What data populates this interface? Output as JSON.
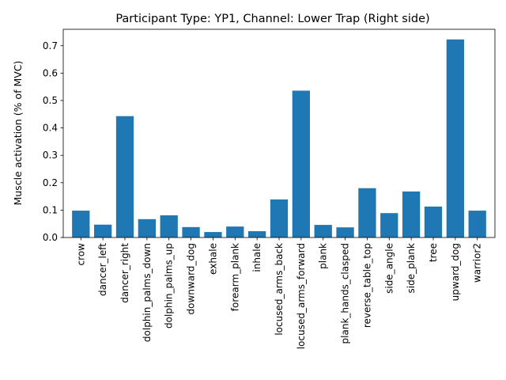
{
  "chart_data": {
    "type": "bar",
    "title": "Participant Type: YP1, Channel: Lower Trap (Right side)",
    "xlabel": "",
    "ylabel": "Muscle activation (% of MVC)",
    "ylim": [
      0,
      0.76
    ],
    "yticks": [
      0.0,
      0.1,
      0.2,
      0.3,
      0.4,
      0.5,
      0.6,
      0.7
    ],
    "ytick_labels": [
      "0.0",
      "0.1",
      "0.2",
      "0.3",
      "0.4",
      "0.5",
      "0.6",
      "0.7"
    ],
    "grid": false,
    "legend": "none",
    "bar_color": "#1f77b4",
    "categories": [
      "crow",
      "dancer_left",
      "dancer_right",
      "dolphin_palms_down",
      "dolphin_palms_up",
      "downward_dog",
      "exhale",
      "forearm_plank",
      "inhale",
      "locused_arms_back",
      "locused_arms_forward",
      "plank",
      "plank_hands_clasped",
      "reverse_table_top",
      "side_angle",
      "side_plank",
      "tree",
      "upward_dog",
      "warrior2"
    ],
    "values": [
      0.098,
      0.047,
      0.443,
      0.067,
      0.081,
      0.038,
      0.02,
      0.04,
      0.023,
      0.139,
      0.536,
      0.046,
      0.037,
      0.18,
      0.089,
      0.168,
      0.113,
      0.723,
      0.098
    ]
  }
}
